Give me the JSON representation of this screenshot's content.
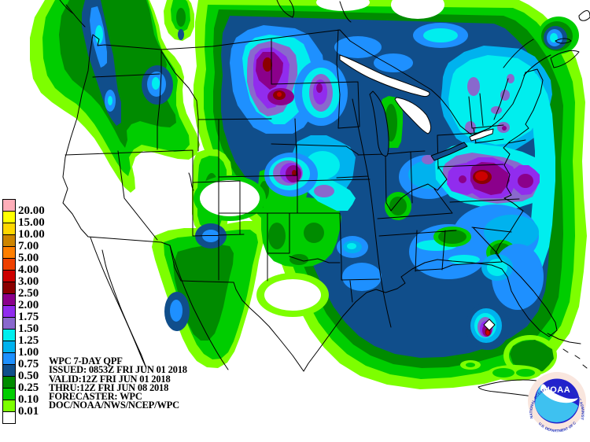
{
  "page_title": "WPC 7-Day QPF",
  "info": {
    "lines": [
      "WPC 7-DAY QPF",
      "ISSUED: 0853Z FRI JUN 01 2018",
      "VALID:12Z FRI JUN 01 2018",
      "THRU:12Z FRI JUN 08 2018",
      "FORECASTER: WPC",
      "DOC/NOAA/NWS/NCEP/WPC"
    ]
  },
  "legend": {
    "thresholds": [
      "20.00",
      "15.00",
      "10.00",
      "7.00",
      "5.00",
      "4.00",
      "3.00",
      "2.50",
      "2.00",
      "1.75",
      "1.50",
      "1.25",
      "1.00",
      "0.75",
      "0.50",
      "0.25",
      "0.10",
      "0.01"
    ],
    "colors": [
      "#FFAEB9",
      "#FFFF00",
      "#FFD700",
      "#CD8500",
      "#FF7F00",
      "#EE4000",
      "#CD0000",
      "#8B0000",
      "#8B008B",
      "#912CEE",
      "#8968CD",
      "#00EEEE",
      "#00B2EE",
      "#1E90FF",
      "#104E8B",
      "#008B00",
      "#00CD00",
      "#7DFF00",
      "#FFFFFF"
    ]
  },
  "logo": {
    "name": "NOAA",
    "ring_top": "NATIONAL OCEANIC AND ATMOSPHERIC ADMINISTRATION",
    "ring_bottom": "U.S. DEPARTMENT OF COMMERCE",
    "colors": {
      "ring": "#F9E6DE",
      "dark_blue": "#2222CC",
      "light_blue": "#3EC1F0",
      "text": "#2233BB"
    }
  },
  "map_colors": {
    "background": "#FFFFFF",
    "borders": "#000000",
    "light_green": "#7DFF00",
    "green": "#00CD00",
    "dark_green": "#008B00",
    "navy": "#104E8B",
    "dodger_blue": "#1E90FF",
    "sky_blue": "#00B2EE",
    "cyan": "#00EEEE",
    "light_purple": "#8968CD",
    "purple": "#912CEE",
    "dark_magenta": "#8B008B",
    "dark_red": "#8B0000",
    "red": "#CD0000"
  }
}
